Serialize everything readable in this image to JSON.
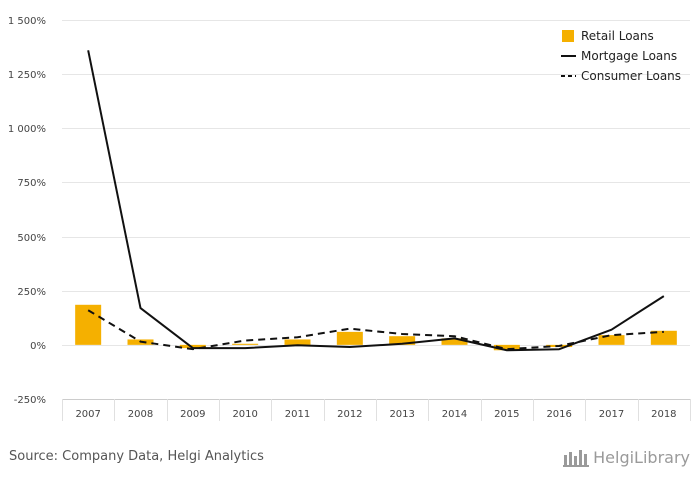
{
  "chart_data": {
    "type": "bar",
    "categories": [
      "2007",
      "2008",
      "2009",
      "2010",
      "2011",
      "2012",
      "2013",
      "2014",
      "2015",
      "2016",
      "2017",
      "2018"
    ],
    "series": [
      {
        "name": "Retail Loans",
        "type": "bar",
        "color": "#f5b000",
        "values": [
          185,
          25,
          -15,
          5,
          25,
          60,
          40,
          30,
          -25,
          -10,
          45,
          65
        ]
      },
      {
        "name": "Mortgage Loans",
        "type": "line",
        "style": "solid",
        "color": "#111111",
        "values": [
          1360,
          170,
          -15,
          -15,
          -2,
          -10,
          5,
          30,
          -25,
          -20,
          70,
          225
        ]
      },
      {
        "name": "Consumer Loans",
        "type": "line",
        "style": "dashed",
        "color": "#111111",
        "values": [
          160,
          15,
          -20,
          20,
          35,
          75,
          50,
          40,
          -20,
          -5,
          45,
          60
        ]
      }
    ],
    "ylim": [
      -250,
      1500
    ],
    "yticks": [
      -250,
      0,
      250,
      500,
      750,
      1000,
      1250,
      1500
    ],
    "ytick_labels": [
      "-250%",
      "0%",
      "250%",
      "500%",
      "750%",
      "1 000%",
      "1 250%",
      "1 500%"
    ],
    "grid": true,
    "legend_position": "top-right"
  },
  "footer": {
    "source": "Source: Company Data, Helgi Analytics",
    "brand": "HelgiLibrary"
  }
}
